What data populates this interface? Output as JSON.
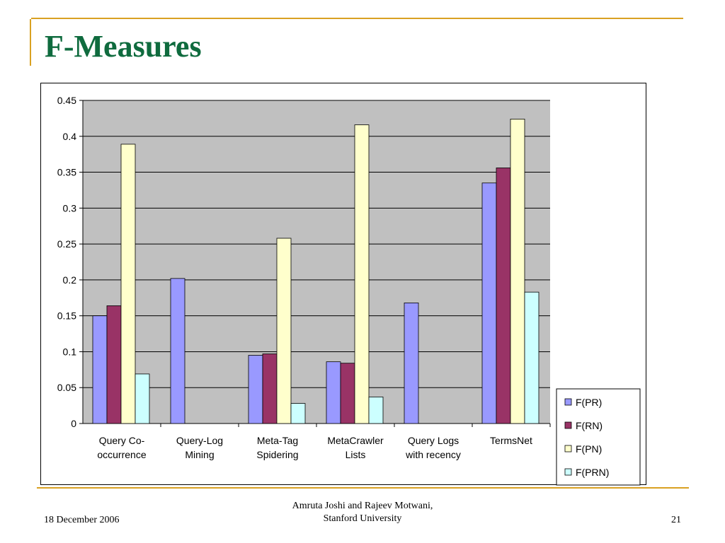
{
  "slide": {
    "title": "F-Measures",
    "footer_date": "18 December 2006",
    "footer_author_line1": "Amruta Joshi and Rajeev Motwani,",
    "footer_author_line2": "Stanford University",
    "page_number": "21"
  },
  "colors": {
    "title": "#0f6b3e",
    "accent": "#d9a122",
    "plot_background": "#c0c0c0"
  },
  "chart_data": {
    "type": "bar",
    "categories": [
      [
        "Query Co-",
        "occurrence"
      ],
      [
        "Query-Log",
        "Mining"
      ],
      [
        "Meta-Tag",
        "Spidering"
      ],
      [
        "MetaCrawler",
        "Lists"
      ],
      [
        "Query Logs",
        "with recency"
      ],
      [
        "TermsNet"
      ]
    ],
    "series": [
      {
        "name": "F(PR)",
        "color": "#9999ff",
        "values": [
          0.15,
          0.202,
          0.095,
          0.086,
          0.168,
          0.335
        ]
      },
      {
        "name": "F(RN)",
        "color": "#993366",
        "values": [
          0.164,
          0,
          0.097,
          0.084,
          0,
          0.356
        ]
      },
      {
        "name": "F(PN)",
        "color": "#ffffcc",
        "values": [
          0.389,
          0,
          0.258,
          0.416,
          0,
          0.424
        ]
      },
      {
        "name": "F(PRN)",
        "color": "#ccffff",
        "values": [
          0.069,
          0,
          0.028,
          0.037,
          0,
          0.183
        ]
      }
    ],
    "ylim": [
      0,
      0.45
    ],
    "yticks": [
      "0",
      "0.05",
      "0.1",
      "0.15",
      "0.2",
      "0.25",
      "0.3",
      "0.35",
      "0.4",
      "0.45"
    ],
    "grid": true,
    "legend": "bottom-right"
  }
}
